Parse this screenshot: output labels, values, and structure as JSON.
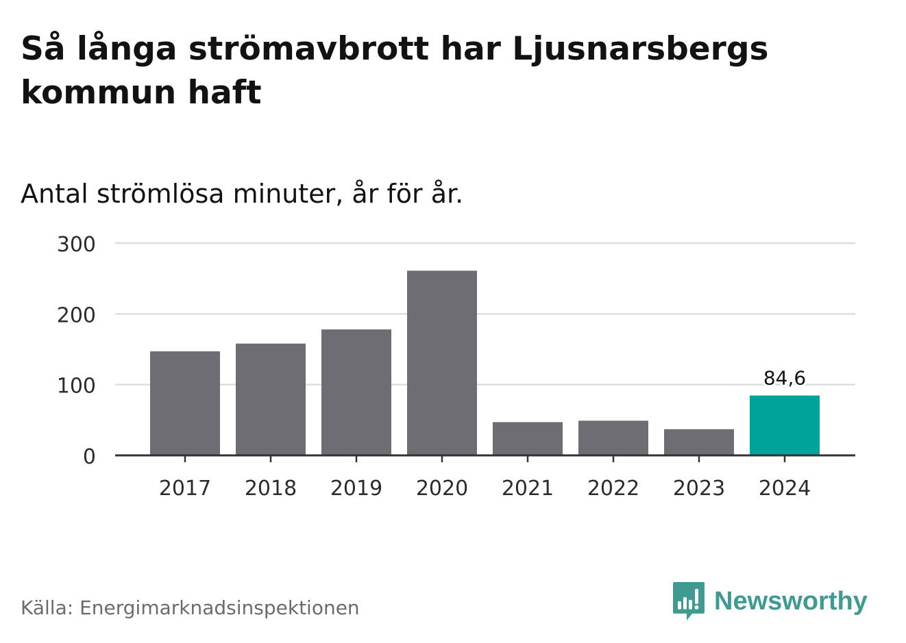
{
  "title": "Så långa strömavbrott har Ljusnarsbergs kommun haft",
  "subtitle": "Antal strömlösa minuter, år för år.",
  "source": "Källa: Energimarknadsinspektionen",
  "brand": {
    "name": "Newsworthy",
    "icon": "newsworthy-logo-icon",
    "color": "#3f9b92"
  },
  "colors": {
    "bar": "#6e6d73",
    "highlight": "#00a39a",
    "grid": "#dddddd",
    "axis": "#333333",
    "text": "#2b2b2b"
  },
  "chart_data": {
    "type": "bar",
    "title": "Så långa strömavbrott har Ljusnarsbergs kommun haft",
    "subtitle": "Antal strömlösa minuter, år för år.",
    "xlabel": "",
    "ylabel": "",
    "categories": [
      "2017",
      "2018",
      "2019",
      "2020",
      "2021",
      "2022",
      "2023",
      "2024"
    ],
    "values": [
      147,
      158,
      178,
      261,
      47,
      49,
      37,
      84.6
    ],
    "highlight_index": 7,
    "data_labels": [
      {
        "index": 7,
        "text": "84,6"
      }
    ],
    "ylim": [
      0,
      300
    ],
    "yticks": [
      0,
      100,
      200,
      300
    ],
    "ytick_labels": [
      "0",
      "100",
      "200",
      "300"
    ],
    "grid": true,
    "legend": "none"
  }
}
